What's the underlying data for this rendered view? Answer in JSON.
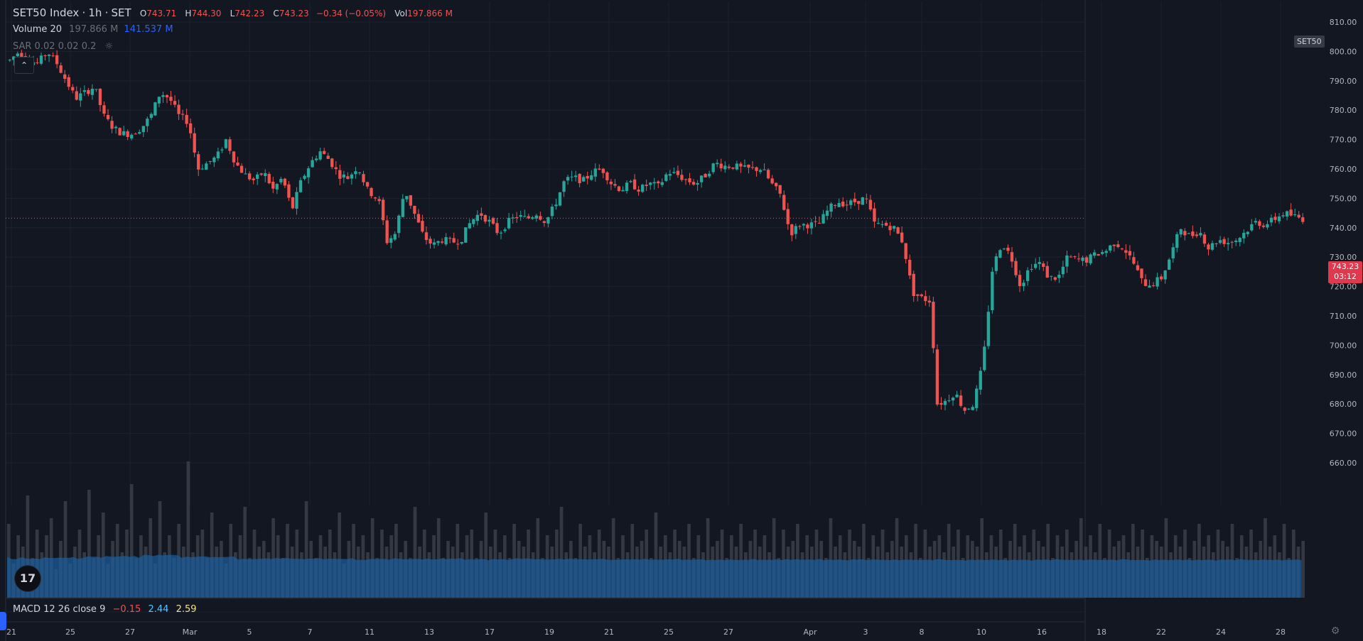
{
  "header": {
    "symbol": "SET50 Index",
    "sep1": "·",
    "interval": "1h",
    "sep2": "·",
    "exchange": "SET",
    "open_label": "O",
    "open": "743.71",
    "high_label": "H",
    "high": "744.30",
    "low_label": "L",
    "low": "742.23",
    "close_label": "C",
    "close": "743.23",
    "change": "−0.34 (−0.05%)",
    "vol_label": "Vol",
    "vol": "197.866 M"
  },
  "volume_indicator": {
    "label": "Volume 20",
    "value": "197.866 M",
    "ma": "141.537 M"
  },
  "sar_indicator": {
    "label": "SAR 0.02 0.02 0.2"
  },
  "symbol_badge": "SET50",
  "last_price": {
    "price": "743.23",
    "countdown": "03:12"
  },
  "macd_indicator": {
    "label": "MACD 12 26 close 9",
    "v1": "−0.15",
    "v2": "2.44",
    "v3": "2.59"
  },
  "logo_text": "17",
  "colors": {
    "up": "#26a69a",
    "down": "#ef5350",
    "volume": "#2a5a8a",
    "volume_ma": "#1f5f99",
    "background": "#131722"
  },
  "chart_data": {
    "type": "candlestick",
    "y_axis": {
      "ylim": [
        652,
        814
      ],
      "ticks": [
        660,
        670,
        680,
        690,
        700,
        710,
        720,
        730,
        740,
        750,
        760,
        770,
        780,
        790,
        800,
        810
      ],
      "tick_labels": [
        "660.00",
        "670.00",
        "680.00",
        "690.00",
        "700.00",
        "710.00",
        "720.00",
        "730.00",
        "740.00",
        "750.00",
        "760.00",
        "770.00",
        "780.00",
        "790.00",
        "800.00",
        "810.00"
      ]
    },
    "x_axis": {
      "tick_labels": [
        "21",
        "25",
        "27",
        "Mar",
        "5",
        "7",
        "11",
        "13",
        "17",
        "19",
        "21",
        "25",
        "27",
        "Apr",
        "3",
        "8",
        "10",
        "16",
        "18",
        "22",
        "24",
        "28"
      ]
    },
    "grid": true,
    "last_close": 743.23,
    "path": [
      [
        0,
        797
      ],
      [
        2,
        800
      ],
      [
        4,
        797
      ],
      [
        6,
        796
      ],
      [
        8,
        800
      ],
      [
        10,
        796
      ],
      [
        12,
        790
      ],
      [
        14,
        784
      ],
      [
        16,
        786
      ],
      [
        18,
        788
      ],
      [
        20,
        778
      ],
      [
        22,
        774
      ],
      [
        24,
        772
      ],
      [
        26,
        772
      ],
      [
        28,
        774
      ],
      [
        30,
        778
      ],
      [
        32,
        786
      ],
      [
        34,
        784
      ],
      [
        36,
        778
      ],
      [
        38,
        776
      ],
      [
        40,
        760
      ],
      [
        42,
        762
      ],
      [
        44,
        764
      ],
      [
        46,
        770
      ],
      [
        48,
        762
      ],
      [
        50,
        758
      ],
      [
        52,
        756
      ],
      [
        54,
        759
      ],
      [
        56,
        753
      ],
      [
        58,
        757
      ],
      [
        60,
        746
      ],
      [
        62,
        756
      ],
      [
        64,
        762
      ],
      [
        66,
        766
      ],
      [
        68,
        763
      ],
      [
        70,
        758
      ],
      [
        72,
        757
      ],
      [
        74,
        761
      ],
      [
        76,
        753
      ],
      [
        78,
        750
      ],
      [
        79,
        747
      ],
      [
        80,
        735
      ],
      [
        82,
        738
      ],
      [
        84,
        753
      ],
      [
        86,
        745
      ],
      [
        88,
        737
      ],
      [
        90,
        734
      ],
      [
        92,
        736
      ],
      [
        94,
        735
      ],
      [
        96,
        736
      ],
      [
        98,
        742
      ],
      [
        100,
        745
      ],
      [
        102,
        742
      ],
      [
        104,
        738
      ],
      [
        106,
        742
      ],
      [
        108,
        744
      ],
      [
        110,
        743
      ],
      [
        112,
        745
      ],
      [
        114,
        742
      ],
      [
        116,
        748
      ],
      [
        118,
        756
      ],
      [
        120,
        757
      ],
      [
        122,
        756
      ],
      [
        124,
        759
      ],
      [
        126,
        760
      ],
      [
        128,
        755
      ],
      [
        130,
        753
      ],
      [
        132,
        755
      ],
      [
        134,
        753
      ],
      [
        136,
        755
      ],
      [
        138,
        754
      ],
      [
        140,
        759
      ],
      [
        142,
        758
      ],
      [
        144,
        756
      ],
      [
        146,
        755
      ],
      [
        148,
        758
      ],
      [
        150,
        762
      ],
      [
        152,
        761
      ],
      [
        154,
        761
      ],
      [
        156,
        760
      ],
      [
        158,
        760
      ],
      [
        160,
        760
      ],
      [
        162,
        755
      ],
      [
        164,
        751
      ],
      [
        166,
        738
      ],
      [
        168,
        741
      ],
      [
        170,
        741
      ],
      [
        172,
        741
      ],
      [
        174,
        746
      ],
      [
        176,
        749
      ],
      [
        178,
        748
      ],
      [
        180,
        749
      ],
      [
        182,
        750
      ],
      [
        184,
        741
      ],
      [
        186,
        741
      ],
      [
        188,
        740
      ],
      [
        190,
        735
      ],
      [
        192,
        718
      ],
      [
        194,
        716
      ],
      [
        196,
        715
      ],
      [
        197,
        680
      ],
      [
        199,
        681
      ],
      [
        201,
        684
      ],
      [
        203,
        678
      ],
      [
        205,
        680
      ],
      [
        207,
        694
      ],
      [
        209,
        726
      ],
      [
        211,
        735
      ],
      [
        213,
        730
      ],
      [
        215,
        720
      ],
      [
        217,
        727
      ],
      [
        219,
        728
      ],
      [
        221,
        723
      ],
      [
        223,
        723
      ],
      [
        225,
        730
      ],
      [
        227,
        729
      ],
      [
        229,
        729
      ],
      [
        231,
        731
      ],
      [
        233,
        732
      ],
      [
        235,
        735
      ],
      [
        237,
        733
      ],
      [
        239,
        728
      ],
      [
        241,
        721
      ],
      [
        243,
        721
      ],
      [
        245,
        723
      ],
      [
        247,
        731
      ],
      [
        249,
        740
      ],
      [
        251,
        737
      ],
      [
        253,
        739
      ],
      [
        255,
        733
      ],
      [
        257,
        736
      ],
      [
        259,
        735
      ],
      [
        261,
        736
      ],
      [
        263,
        739
      ],
      [
        265,
        742
      ],
      [
        267,
        741
      ],
      [
        269,
        743
      ],
      [
        271,
        745
      ],
      [
        273,
        744
      ],
      [
        275,
        743
      ]
    ],
    "volume_bars_heights": [
      65,
      30,
      55,
      45,
      90,
      35,
      60,
      40,
      55,
      70,
      25,
      50,
      85,
      30,
      45,
      60,
      40,
      95,
      35,
      55,
      75,
      30,
      50,
      65,
      40,
      60,
      100,
      35,
      55,
      45,
      70,
      30,
      85,
      40,
      55,
      35,
      65,
      45,
      120,
      40,
      55,
      60,
      35,
      75,
      45,
      50,
      30,
      65,
      40,
      55,
      80,
      35,
      60,
      45,
      50,
      40,
      70,
      55,
      35,
      65,
      45,
      60,
      40,
      85,
      50,
      35,
      55,
      45,
      60,
      40,
      75,
      30,
      50,
      65,
      45,
      55,
      40,
      70,
      35,
      60,
      45,
      55,
      65,
      40,
      50,
      35,
      80,
      45,
      60,
      40,
      55,
      70,
      35,
      50,
      45,
      65,
      40,
      55,
      60,
      35,
      50,
      75,
      45,
      60,
      40,
      55,
      35,
      65,
      50,
      45,
      60,
      40,
      70,
      35,
      55,
      45,
      60,
      80,
      40,
      50,
      35,
      65,
      45,
      55,
      40,
      60,
      50,
      45,
      70,
      35,
      55,
      40,
      65,
      45,
      50,
      60,
      35,
      75,
      45,
      55,
      40,
      60,
      50,
      45,
      65,
      35,
      55,
      40,
      70,
      45,
      50,
      60,
      35,
      55,
      45,
      65,
      40,
      50,
      60,
      45,
      55,
      40,
      70,
      35,
      60,
      45,
      50,
      65,
      40,
      55,
      45,
      60,
      50,
      35,
      70,
      45,
      55,
      40,
      60,
      50,
      45,
      65,
      35,
      55,
      45,
      60,
      40,
      50,
      70,
      45,
      55,
      40,
      65,
      35,
      60,
      45,
      50,
      55,
      40,
      65,
      45,
      60,
      35,
      55,
      50,
      45,
      70,
      40,
      55,
      45,
      60,
      35,
      50,
      65,
      45,
      55,
      40,
      60,
      50,
      45,
      65,
      35,
      55,
      45,
      60,
      40,
      50,
      70,
      45,
      55,
      40,
      65,
      35,
      60,
      45,
      50,
      55,
      40,
      65,
      45,
      60,
      35,
      55,
      50,
      45,
      70,
      40,
      55,
      45,
      60,
      35,
      50,
      65,
      45,
      55,
      40,
      60,
      50,
      45,
      65,
      35,
      55,
      45,
      60,
      40,
      50,
      70,
      45,
      55,
      40,
      65,
      35,
      60,
      45,
      50
    ]
  }
}
